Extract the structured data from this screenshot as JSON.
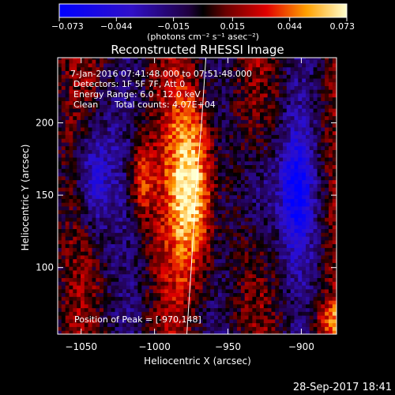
{
  "chart_data": {
    "type": "heatmap",
    "title": "Reconstructed RHESSI Image",
    "xlabel": "Heliocentric X (arcsec)",
    "ylabel": "Heliocentric Y (arcsec)",
    "xlim": [
      -1066,
      -876
    ],
    "ylim": [
      54,
      245
    ],
    "x_ticks": [
      -1050,
      -1000,
      -950,
      -900
    ],
    "x_tick_labels": [
      "−1050",
      "−1000",
      "−950",
      "−900"
    ],
    "y_ticks": [
      100,
      150,
      200
    ],
    "y_tick_labels": [
      "100",
      "150",
      "200"
    ],
    "colorbar": {
      "min": -0.073,
      "max": 0.073,
      "ticks": [
        -0.073,
        -0.044,
        -0.015,
        0.015,
        0.044,
        0.073
      ],
      "tick_labels": [
        "−0.073",
        "−0.044",
        "−0.015",
        "0.015",
        "0.044",
        "0.073"
      ],
      "unit_label": "(photons cm⁻² s⁻¹ asec⁻²)"
    },
    "annotations": {
      "time_range": "7-Jan-2016 07:41:48.000 to 07:51:48.000",
      "detectors": "Detectors: 1F 5F 7F, Att 0",
      "energy": "Energy Range: 6.0 - 12.0 keV",
      "method": "Clean",
      "counts": "Total counts: 4.07E+04",
      "peak": "Position of Peak = [-970,148]"
    },
    "peak": {
      "x": -970,
      "y": 148,
      "value": 0.073
    },
    "components": [
      {
        "x": -975,
        "y": 155,
        "sx": 11,
        "sy": 44,
        "amp": 0.073
      },
      {
        "x": -1010,
        "y": 160,
        "sx": 6,
        "sy": 20,
        "amp": 0.042
      },
      {
        "x": -1043,
        "y": 162,
        "sx": 9,
        "sy": 28,
        "amp": -0.05
      },
      {
        "x": -930,
        "y": 150,
        "sx": 9,
        "sy": 34,
        "amp": -0.035
      },
      {
        "x": -905,
        "y": 150,
        "sx": 8,
        "sy": 30,
        "amp": -0.055
      },
      {
        "x": -878,
        "y": 62,
        "sx": 10,
        "sy": 10,
        "amp": 0.04
      }
    ],
    "limb": [
      [
        -965,
        245
      ],
      [
        -968,
        200
      ],
      [
        -972,
        150
      ],
      [
        -975,
        100
      ],
      [
        -978,
        54
      ]
    ],
    "grid": false
  },
  "footer": {
    "date": "28-Sep-2017 18:41"
  }
}
